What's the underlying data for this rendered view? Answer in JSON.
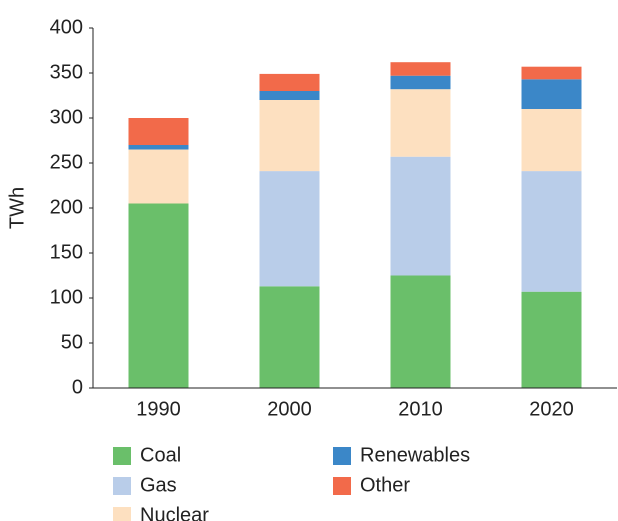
{
  "chart_data": {
    "type": "stacked_bar",
    "y_label": "TWh",
    "categories": [
      "1990",
      "2000",
      "2010",
      "2020"
    ],
    "series": [
      {
        "name": "Coal",
        "color": "#6abf6a",
        "values": [
          205,
          113,
          125,
          107
        ]
      },
      {
        "name": "Gas",
        "color": "#b9cde9",
        "values": [
          0,
          128,
          132,
          134
        ]
      },
      {
        "name": "Nuclear",
        "color": "#fde0c0",
        "values": [
          60,
          79,
          75,
          69
        ]
      },
      {
        "name": "Renewables",
        "color": "#3b87c8",
        "values": [
          5,
          10,
          15,
          33
        ]
      },
      {
        "name": "Other",
        "color": "#f26a4a",
        "values": [
          30,
          19,
          15,
          14
        ]
      }
    ],
    "ylim": [
      0,
      400
    ],
    "yticks": [
      0,
      50,
      100,
      150,
      200,
      250,
      300,
      350,
      400
    ],
    "grid": false,
    "legend": "bottom"
  }
}
